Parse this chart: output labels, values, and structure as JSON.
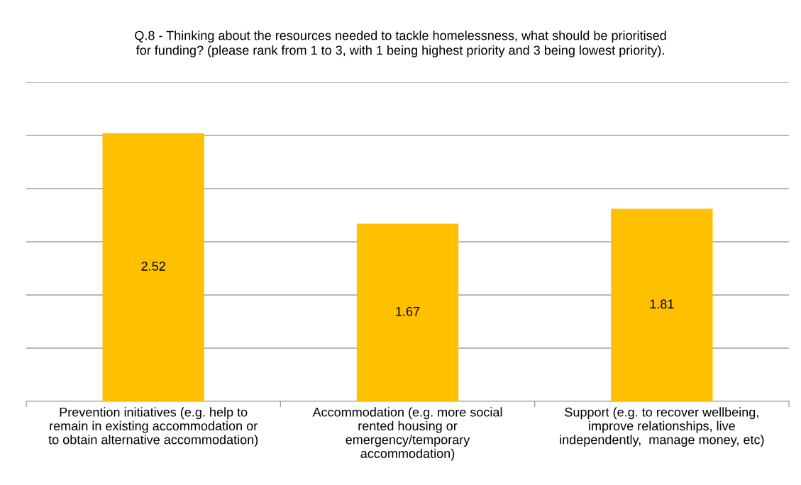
{
  "chart_data": {
    "type": "bar",
    "title": "Q.8 - Thinking about the resources needed to tackle homelessness, what should be prioritised\nfor funding? (please rank from 1 to 3, with 1 being highest priority and 3 being lowest priority).",
    "categories": [
      "Prevention initiatives (e.g. help to\nremain in existing accommodation or\nto obtain alternative accommodation)",
      "Accommodation (e.g. more social\nrented housing or\nemergency/temporary\naccommodation)",
      "Support (e.g. to recover wellbeing,\nimprove relationships, live\nindependently,  manage money, etc)"
    ],
    "values": [
      2.52,
      1.67,
      1.81
    ],
    "color": "#ffc000",
    "data_labels": true,
    "ylim": [
      0,
      3
    ],
    "yticks": [
      {
        "value": 0,
        "label": null
      },
      {
        "value": 0.5,
        "label": null
      },
      {
        "value": 1,
        "label": null
      },
      {
        "value": 1.5,
        "label": null
      },
      {
        "value": 2,
        "label": null
      },
      {
        "value": 2.5,
        "label": null
      },
      {
        "value": 3,
        "label": null
      }
    ],
    "grid": "y",
    "tick_labels": "x"
  }
}
